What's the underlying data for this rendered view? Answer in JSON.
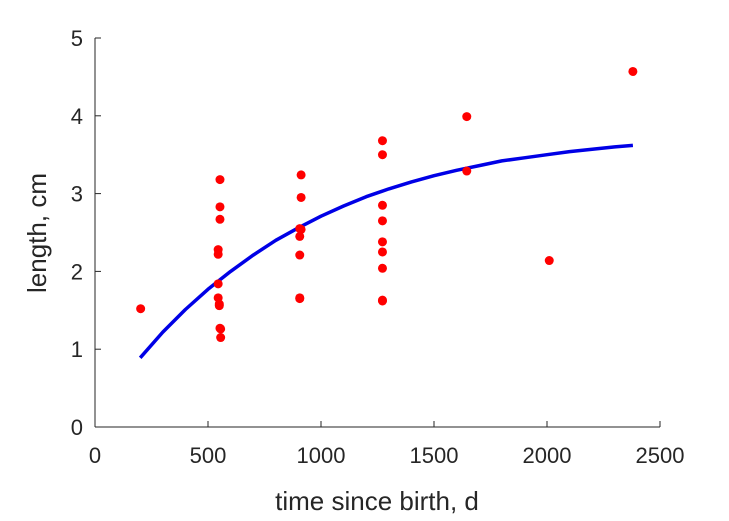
{
  "chart_data": {
    "type": "scatter",
    "title": "",
    "xlabel": "time since birth, d",
    "ylabel": "length, cm",
    "xlim": [
      0,
      2500
    ],
    "ylim": [
      0,
      5
    ],
    "xticks": [
      0,
      500,
      1000,
      1500,
      2000,
      2500
    ],
    "yticks": [
      0,
      1,
      2,
      3,
      4,
      5
    ],
    "xtick_labels": [
      "0",
      "500",
      "1000",
      "1500",
      "2000",
      "2500"
    ],
    "ytick_labels": [
      "0",
      "1",
      "2",
      "3",
      "4",
      "5"
    ],
    "grid": false,
    "legend": "none",
    "colors": {
      "points": "#ff0000",
      "curve": "#0000e6",
      "axis": "#262626"
    },
    "series": [
      {
        "kind": "points",
        "x": [
          202,
          545,
          545,
          545,
          545,
          550,
          550,
          553,
          553,
          553,
          553,
          556,
          556,
          906,
          906,
          906,
          906,
          906,
          912,
          912,
          912,
          1272,
          1272,
          1272,
          1272,
          1272,
          1272,
          1272,
          1272,
          1272,
          1645,
          1645,
          2010,
          2380
        ],
        "y": [
          1.52,
          2.22,
          2.28,
          1.84,
          1.66,
          1.56,
          1.58,
          3.18,
          2.83,
          2.67,
          1.27,
          1.26,
          1.15,
          2.55,
          2.45,
          2.21,
          1.65,
          1.66,
          3.24,
          2.95,
          2.54,
          3.68,
          3.5,
          2.85,
          2.65,
          2.38,
          2.25,
          2.04,
          1.62,
          1.63,
          3.99,
          3.29,
          2.14,
          4.57
        ]
      },
      {
        "kind": "fit-curve",
        "x": [
          200,
          300,
          400,
          500,
          600,
          700,
          800,
          900,
          1000,
          1100,
          1200,
          1300,
          1400,
          1500,
          1600,
          1700,
          1800,
          1900,
          2000,
          2100,
          2200,
          2300,
          2380
        ],
        "y": [
          0.89,
          1.22,
          1.51,
          1.77,
          2.0,
          2.21,
          2.4,
          2.56,
          2.71,
          2.84,
          2.96,
          3.06,
          3.15,
          3.23,
          3.3,
          3.36,
          3.42,
          3.46,
          3.5,
          3.54,
          3.57,
          3.6,
          3.62
        ]
      }
    ]
  }
}
